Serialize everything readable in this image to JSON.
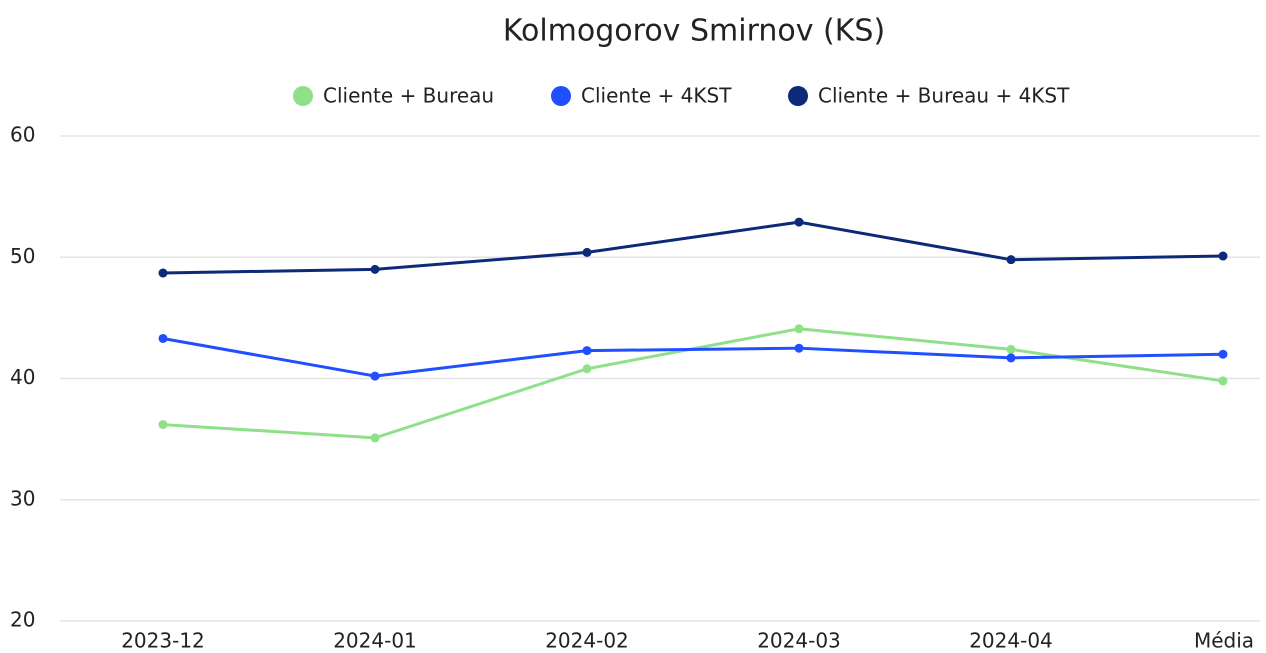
{
  "chart_data": {
    "type": "line",
    "title": "Kolmogorov Smirnov (KS)",
    "categories": [
      "2023-12",
      "2024-01",
      "2024-02",
      "2024-03",
      "2024-04",
      "Média"
    ],
    "series": [
      {
        "name": "Cliente + Bureau",
        "color": "#90e08a",
        "values": [
          36.2,
          35.1,
          40.8,
          44.1,
          42.4,
          39.8
        ]
      },
      {
        "name": "Cliente + 4KST",
        "color": "#1f4fff",
        "values": [
          43.3,
          40.2,
          42.3,
          42.5,
          41.7,
          42.0
        ]
      },
      {
        "name": "Cliente + Bureau + 4KST",
        "color": "#0d2a78",
        "values": [
          48.7,
          49.0,
          50.4,
          52.9,
          49.8,
          50.1
        ]
      }
    ],
    "ylim": [
      20,
      60
    ],
    "yticks": [
      20,
      30,
      40,
      50,
      60
    ],
    "grid": true,
    "legend": "top"
  }
}
